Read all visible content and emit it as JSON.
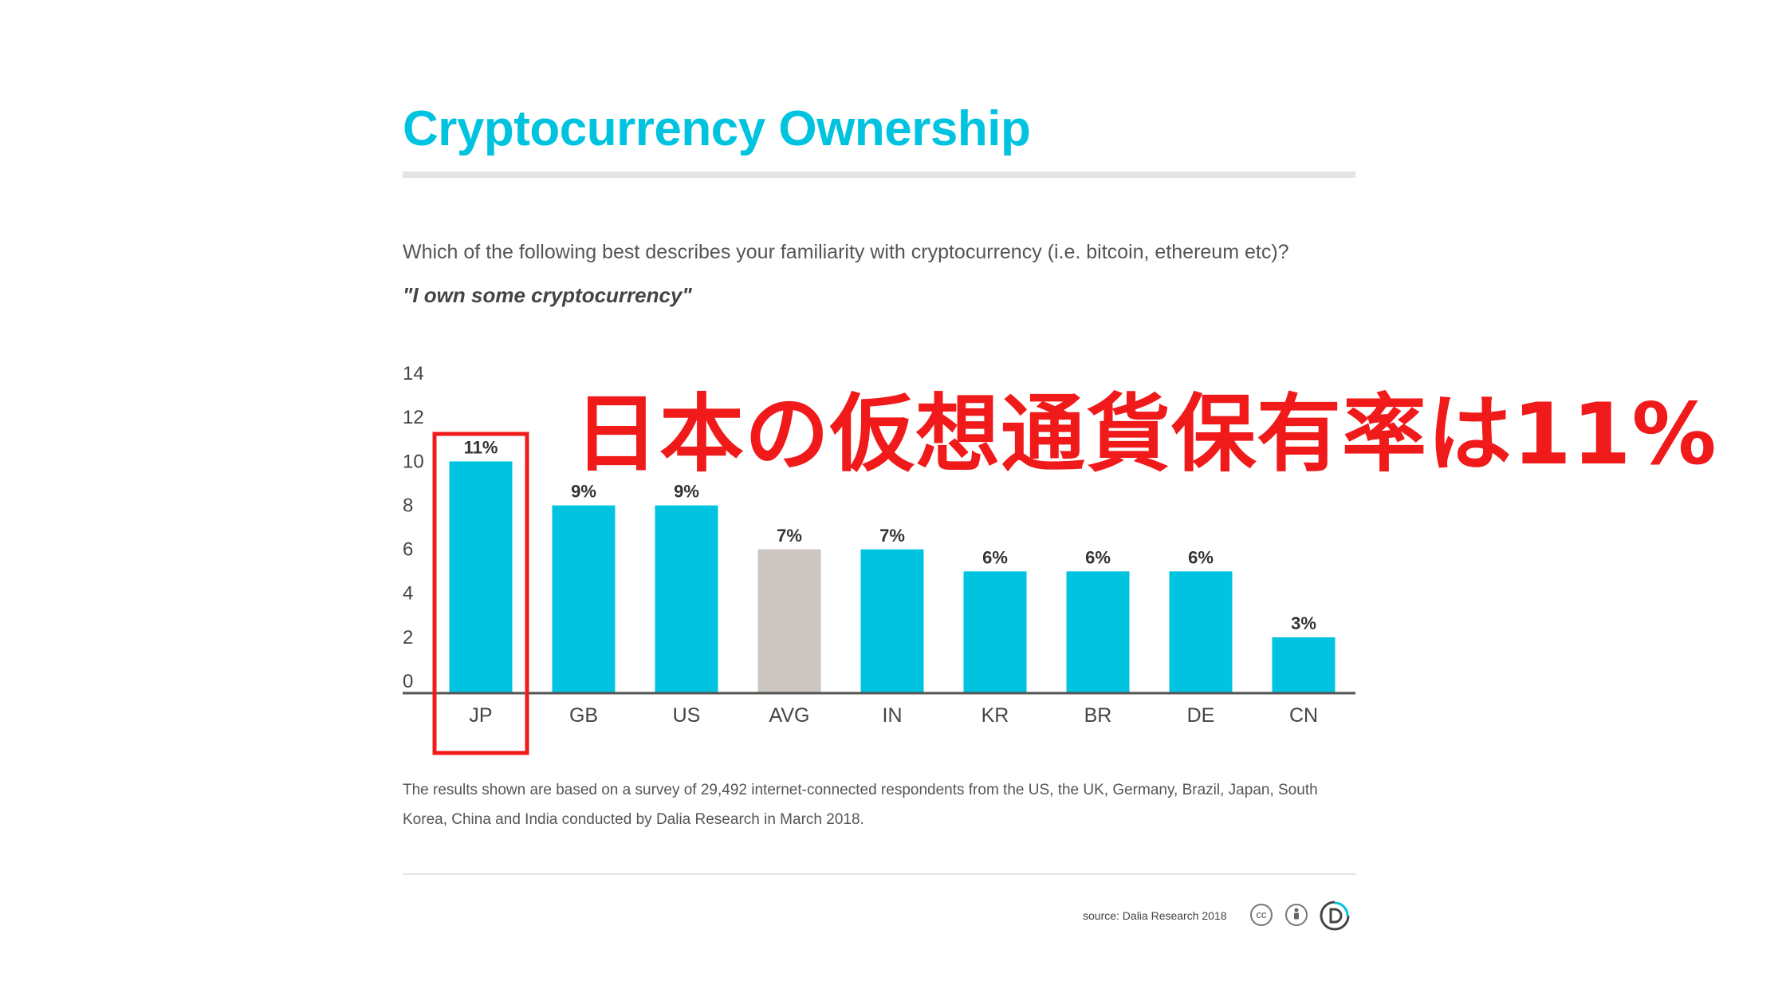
{
  "header": {
    "title": "Cryptocurrency Ownership"
  },
  "question": "Which of the following best describes your familiarity with cryptocurrency (i.e. bitcoin, ethereum etc)?",
  "quote": "\"I own some cryptocurrency\"",
  "annotation": "日本の仮想通貨保有率は11%",
  "note": "The results shown are based on a survey of 29,492 internet-connected respondents from the US, the UK, Germany, Brazil, Japan, South Korea, China and India conducted by Dalia Research in March 2018.",
  "footer": {
    "source": "source: Dalia Research 2018",
    "cc_label": "cc",
    "cc_icon": "creative-commons-icon",
    "by_icon": "attribution-person-icon",
    "logo_icon": "dalia-logo-icon"
  },
  "colors": {
    "accent": "#00c3df",
    "average_bar": "#cbc6c2",
    "highlight": "#f01a1a"
  },
  "chart_data": {
    "type": "bar",
    "categories": [
      "JP",
      "GB",
      "US",
      "AVG",
      "IN",
      "KR",
      "BR",
      "DE",
      "CN"
    ],
    "values": [
      10.5,
      8.5,
      8.5,
      6.5,
      6.5,
      5.5,
      5.5,
      5.5,
      2.5
    ],
    "data_labels": [
      "11%",
      "9%",
      "9%",
      "7%",
      "7%",
      "6%",
      "6%",
      "6%",
      "3%"
    ],
    "ylim": [
      0,
      14
    ],
    "yticks": [
      0,
      2,
      4,
      6,
      8,
      10,
      12,
      14
    ],
    "highlighted_category": "JP",
    "average_category": "AVG",
    "grid": false,
    "legend": "none",
    "title": "Cryptocurrency Ownership",
    "xlabel": "",
    "ylabel": ""
  }
}
